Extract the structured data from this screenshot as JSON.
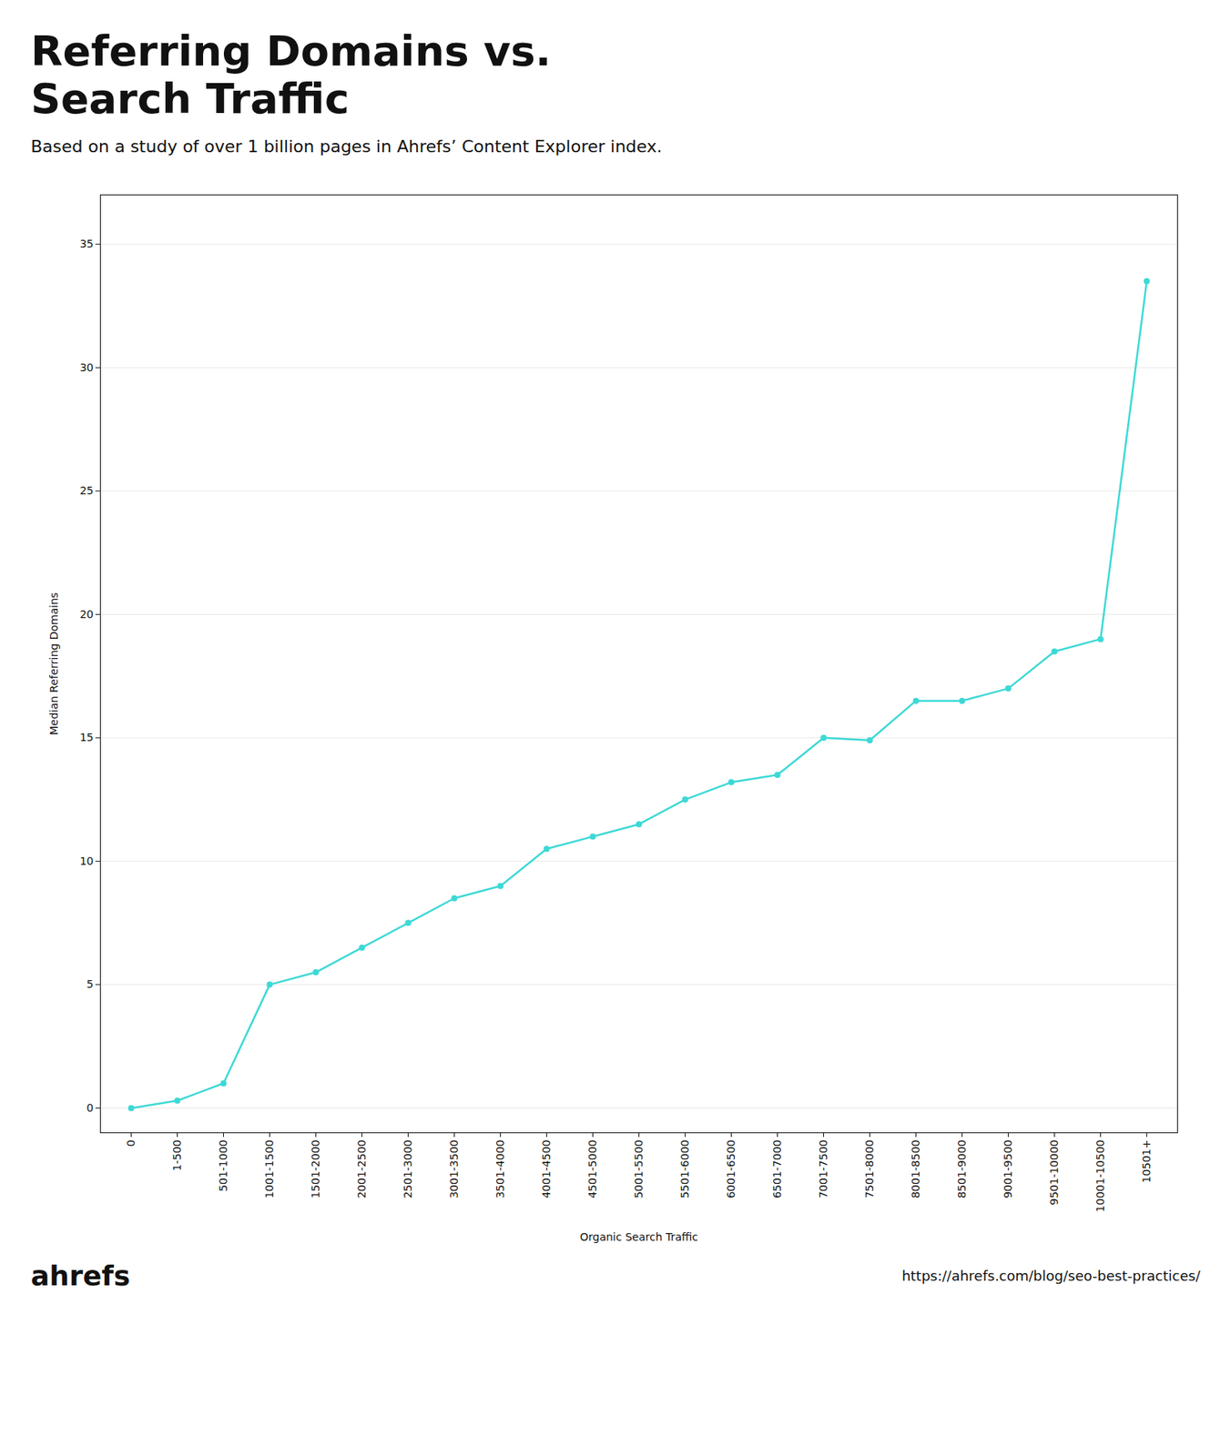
{
  "chart_data": {
    "type": "line",
    "title": [
      "Referring Domains vs.",
      "Search Traffic"
    ],
    "subtitle": "Based on a study of over 1 billion pages in Ahrefs’ Content Explorer index.",
    "xlabel": "Organic Search Traffic",
    "ylabel": "Median Referring Domains",
    "annotations": [
      "ahrefs",
      "https://ahrefs.com/blog/seo-best-practices/"
    ],
    "categories": [
      "0",
      "1-500",
      "501-1000",
      "1001-1500",
      "1501-2000",
      "2001-2500",
      "2501-3000",
      "3001-3500",
      "3501-4000",
      "4001-4500",
      "4501-5000",
      "5001-5500",
      "5501-6000",
      "6001-6500",
      "6501-7000",
      "7001-7500",
      "7501-8000",
      "8001-8500",
      "8501-9000",
      "9001-9500",
      "9501-10000",
      "10001-10500",
      "10501+"
    ],
    "values": [
      0,
      0.3,
      1,
      5,
      5.5,
      6.5,
      7.5,
      8.5,
      9,
      10.5,
      11,
      11.5,
      12.5,
      13.2,
      13.5,
      15,
      14.9,
      16.5,
      16.5,
      17,
      18.5,
      19,
      33.5
    ],
    "color": "#3dd9d6",
    "marker": "circle",
    "ylim": [
      -1,
      37
    ],
    "yticks": [
      0,
      5,
      10,
      15,
      20,
      25,
      30,
      35
    ],
    "grid": true
  }
}
